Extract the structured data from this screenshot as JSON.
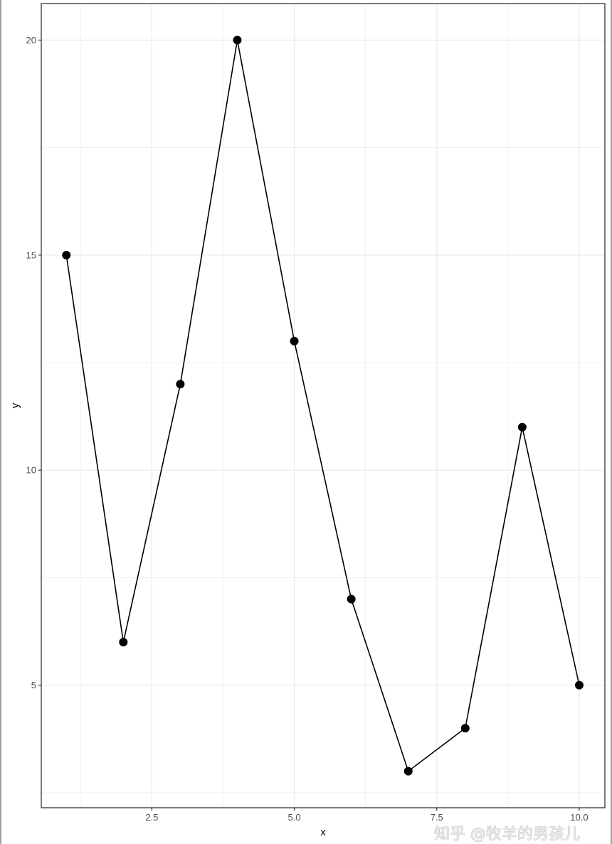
{
  "chart_data": {
    "type": "line",
    "title": "",
    "xlabel": "x",
    "ylabel": "y",
    "x": [
      1,
      2,
      3,
      4,
      5,
      6,
      7,
      8,
      9,
      10
    ],
    "y": [
      15,
      6,
      12,
      20,
      13,
      7,
      3,
      4,
      11,
      5
    ],
    "markers": true,
    "xlim": [
      0.56,
      10.45
    ],
    "ylim": [
      2.15,
      20.85
    ],
    "xticks": [
      2.5,
      5.0,
      7.5,
      10.0
    ],
    "xtick_labels": [
      "2.5",
      "5.0",
      "7.5",
      "10.0"
    ],
    "yticks": [
      5,
      10,
      15,
      20
    ],
    "ytick_labels": [
      "5",
      "10",
      "15",
      "20"
    ],
    "grid": true,
    "theme": "bw",
    "colors": {
      "line": "#000000",
      "point": "#000000",
      "grid": "#ebebeb",
      "border": "#333333"
    }
  },
  "watermark": "知乎 @牧羊的男孩儿"
}
